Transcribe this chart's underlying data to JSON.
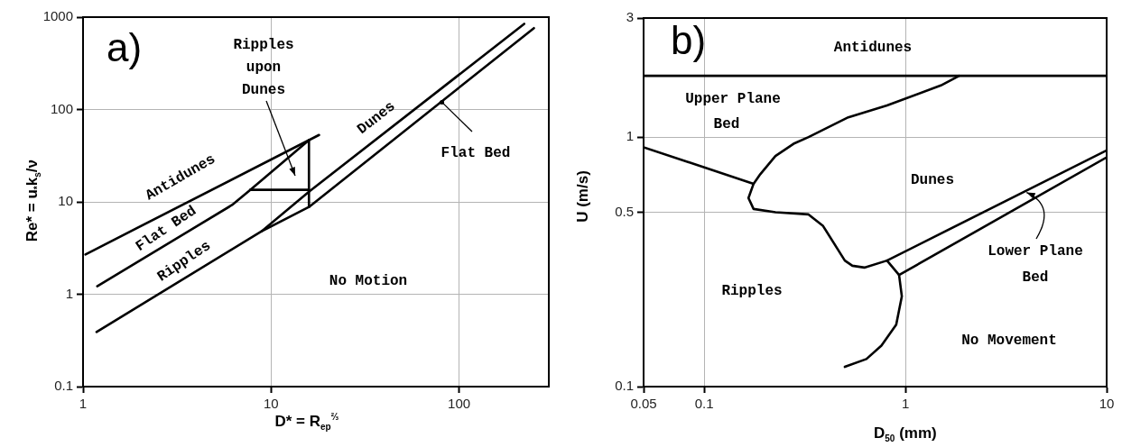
{
  "chart_data": [
    {
      "type": "line",
      "xlabel": "D* = R$_{ep}$$^{⅔}$",
      "ylabel": "Re* = u$_{*}$k$_{s}$/ν",
      "log": "xy",
      "grid": true,
      "legend": false,
      "marker": "none",
      "line_style": "solid",
      "xlim": [
        1,
        300
      ],
      "ylim": [
        0.1,
        1000
      ],
      "xticks": [
        1,
        10,
        100
      ],
      "yticks": [
        0.1,
        1,
        10,
        100,
        1000
      ],
      "series": [
        {
          "color": "#000000",
          "x": [
            1.03,
            18
          ],
          "values": [
            2.7,
            53
          ]
        },
        {
          "color": "#000000",
          "x": [
            1.19,
            6.2,
            7.75,
            15.9
          ],
          "values": [
            1.22,
            9.25,
            13.5,
            46.6
          ]
        },
        {
          "color": "#000000",
          "x": [
            7.75,
            15.9
          ],
          "values": [
            13.5,
            13.5
          ]
        },
        {
          "color": "#000000",
          "x": [
            15.9,
            15.9
          ],
          "values": [
            46.6,
            8.8
          ]
        },
        {
          "color": "#000000",
          "x": [
            1.18,
            8.9,
            15.9,
            250
          ],
          "values": [
            0.39,
            4.8,
            8.8,
            760
          ]
        },
        {
          "color": "#000000",
          "x": [
            8.9,
            15.9,
            222
          ],
          "values": [
            4.8,
            12.9,
            845
          ]
        }
      ],
      "annotations": [
        "a)",
        "Ripples upon Dunes",
        "Antidunes",
        "Flat Bed",
        "Ripples",
        "Dunes",
        {
          "text": "Flat Bed",
          "x": 81,
          "y": 120
        },
        "No Motion"
      ]
    },
    {
      "type": "line",
      "xlabel": "D$_{50}$ (mm)",
      "ylabel": "U (m/s)",
      "log": "xy",
      "grid": true,
      "legend": false,
      "marker": "none",
      "line_style": "solid",
      "xlim": [
        0.05,
        10
      ],
      "ylim": [
        0.1,
        3
      ],
      "xticks": [
        0.05,
        0.1,
        1,
        10
      ],
      "yticks": [
        0.1,
        0.5,
        1,
        3
      ],
      "series": [
        {
          "color": "#000000",
          "x": [
            0.05,
            10
          ],
          "values": [
            1.76,
            1.76
          ]
        },
        {
          "color": "#000000",
          "x": [
            1.85,
            1.5,
            0.81,
            0.52,
            0.33,
            0.278,
            0.226,
            0.19,
            0.176,
            0.166,
            0.176,
            0.226,
            0.33,
            0.39,
            0.5,
            0.545,
            0.625,
            0.81,
            10
          ],
          "values": [
            1.76,
            1.61,
            1.34,
            1.2,
            1.0,
            0.94,
            0.84,
            0.71,
            0.65,
            0.57,
            0.515,
            0.5,
            0.49,
            0.44,
            0.32,
            0.305,
            0.3,
            0.32,
            0.885
          ]
        },
        {
          "color": "#000000",
          "x": [
            0.05,
            0.176
          ],
          "values": [
            0.91,
            0.65
          ]
        },
        {
          "color": "#000000",
          "x": [
            10,
            0.93,
            0.96,
            0.9,
            0.76,
            0.64,
            0.5
          ],
          "values": [
            0.83,
            0.28,
            0.23,
            0.177,
            0.146,
            0.129,
            0.12
          ]
        },
        {
          "color": "#000000",
          "x": [
            0.81,
            0.93
          ],
          "values": [
            0.32,
            0.28
          ]
        }
      ],
      "annotations": [
        "b)",
        "Antidunes",
        "Upper Plane Bed",
        "Dunes",
        "Ripples",
        {
          "text": "Lower Plane Bed",
          "x": 4.0,
          "y": 0.6
        },
        "No Movement"
      ]
    }
  ]
}
